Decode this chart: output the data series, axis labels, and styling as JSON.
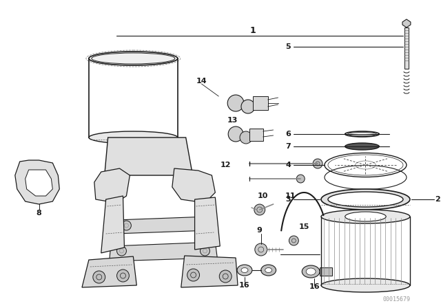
{
  "bg_color": "#ffffff",
  "line_color": "#1a1a1a",
  "gray_fill": "#e8e8e8",
  "mid_gray": "#cccccc",
  "watermark": "00015679",
  "lw_main": 0.9,
  "lw_thin": 0.5,
  "lw_leader": 0.7
}
